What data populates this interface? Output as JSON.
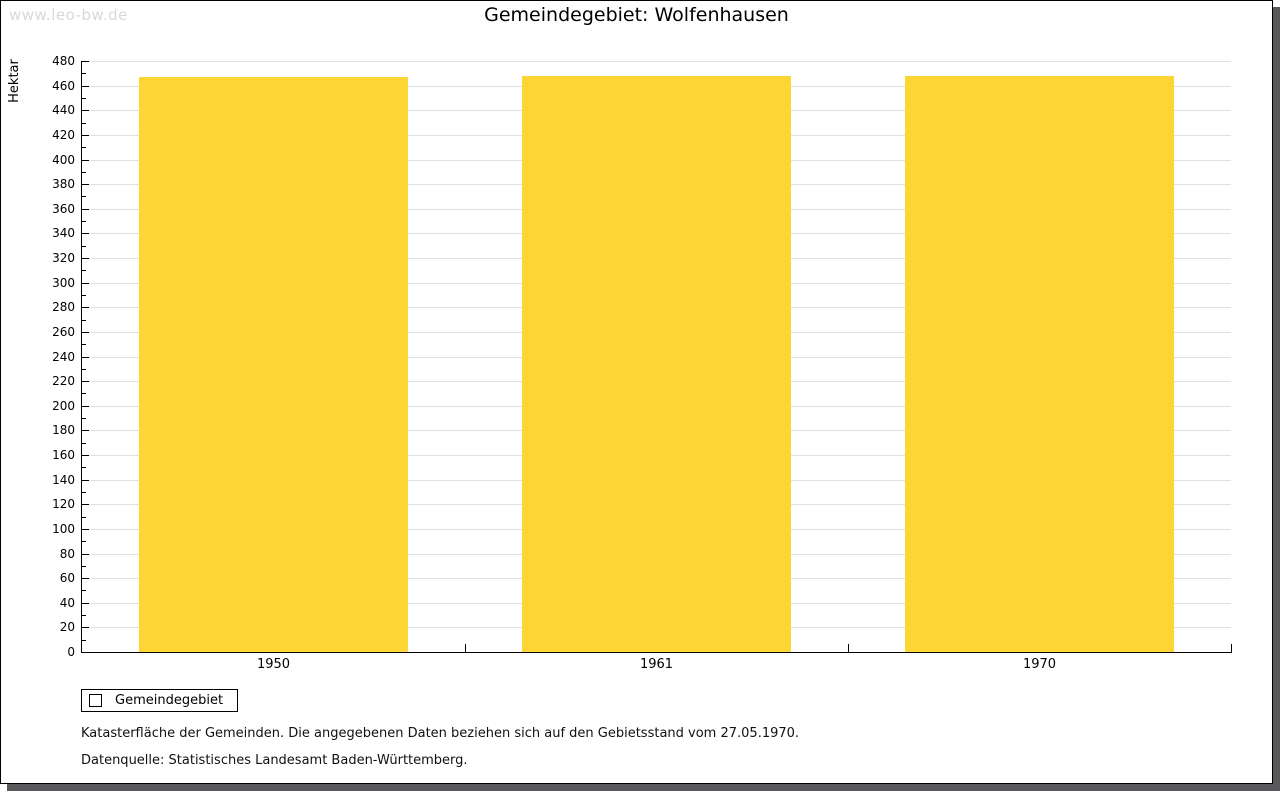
{
  "watermark": "www.leo-bw.de",
  "title": "Gemeindegebiet: Wolfenhausen",
  "legend": {
    "label": "Gemeindegebiet"
  },
  "footnotes": [
    "Katasterfläche der Gemeinden. Die angegebenen Daten beziehen sich auf den Gebietsstand vom 27.05.1970.",
    "Datenquelle: Statistisches Landesamt Baden-Württemberg."
  ],
  "colors": {
    "bar": "#fdd535",
    "gridline": "#e0e0e0",
    "axis": "#000000",
    "watermark": "#d9d9d9",
    "page_shadow": "#59595b"
  },
  "chart_data": {
    "type": "bar",
    "title": "Gemeindegebiet: Wolfenhausen",
    "categories": [
      "1950",
      "1961",
      "1970"
    ],
    "series": [
      {
        "name": "Gemeindegebiet",
        "values": [
          467,
          468,
          468
        ]
      }
    ],
    "xlabel": "",
    "ylabel": "Hektar",
    "ylim": [
      0,
      480
    ],
    "ytick_step": 20,
    "yminor_step": 10,
    "grid": true,
    "legend_position": "bottom-left",
    "bar_color": "#fdd535"
  }
}
